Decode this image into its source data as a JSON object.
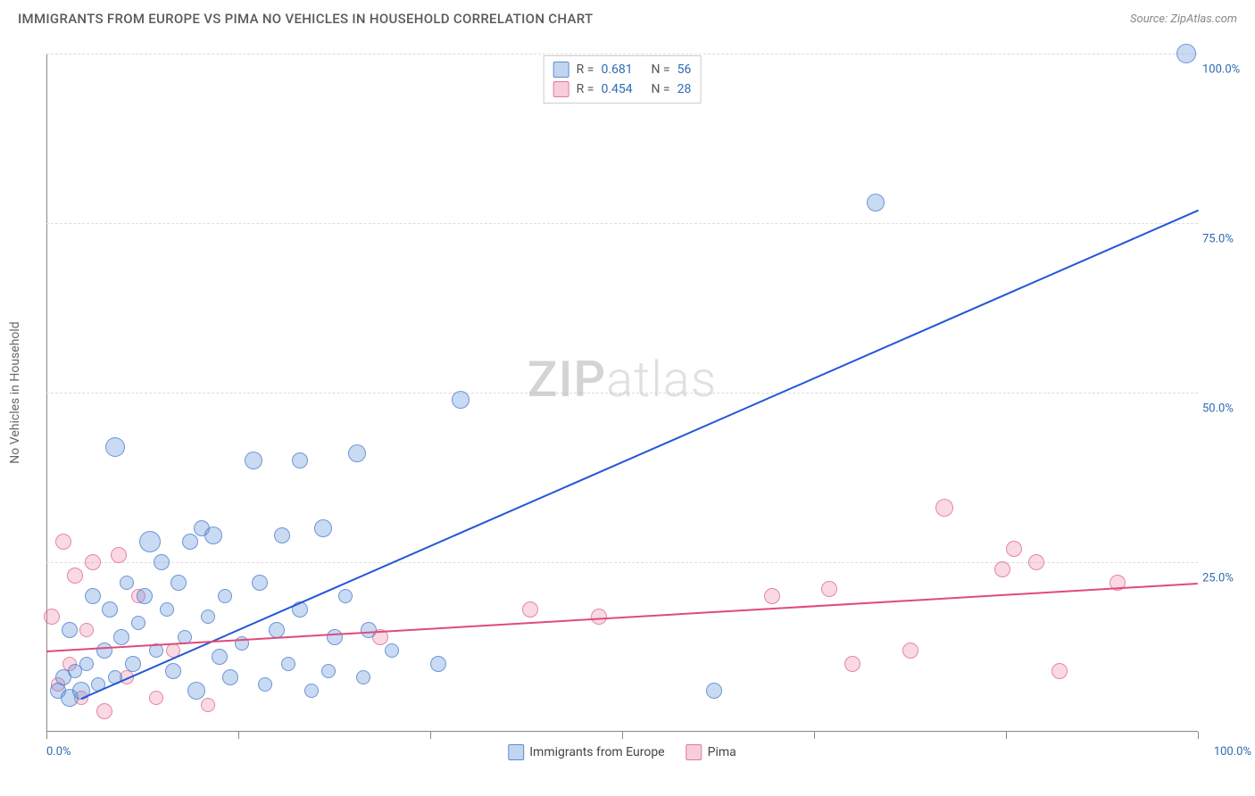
{
  "header": {
    "title": "IMMIGRANTS FROM EUROPE VS PIMA NO VEHICLES IN HOUSEHOLD CORRELATION CHART",
    "source": "Source: ZipAtlas.com"
  },
  "chart": {
    "type": "scatter",
    "watermark_prefix": "ZIP",
    "watermark_suffix": "atlas",
    "y_axis_title": "No Vehicles in Household",
    "x_axis_min_label": "0.0%",
    "x_axis_max_label": "100.0%",
    "xlim": [
      0,
      100
    ],
    "ylim": [
      0,
      100
    ],
    "y_ticks": [
      {
        "value": 25,
        "label": "25.0%"
      },
      {
        "value": 50,
        "label": "50.0%"
      },
      {
        "value": 75,
        "label": "75.0%"
      },
      {
        "value": 100,
        "label": "100.0%"
      }
    ],
    "x_tick_values": [
      0,
      16.67,
      33.33,
      50,
      66.67,
      83.33,
      100
    ],
    "grid_color": "#dddddd",
    "background_color": "#ffffff",
    "series": {
      "blue": {
        "label": "Immigrants from Europe",
        "r_value": "0.681",
        "n_value": "56",
        "fill_color": "rgba(100,150,220,0.35)",
        "stroke_color": "rgba(70,120,200,0.7)",
        "trend": {
          "x1": 3,
          "y1": 5,
          "x2": 100,
          "y2": 77,
          "color": "#2456d6"
        },
        "points": [
          {
            "x": 1,
            "y": 6,
            "r": 9
          },
          {
            "x": 1.5,
            "y": 8,
            "r": 9
          },
          {
            "x": 2,
            "y": 5,
            "r": 10
          },
          {
            "x": 2.5,
            "y": 9,
            "r": 8
          },
          {
            "x": 2,
            "y": 15,
            "r": 9
          },
          {
            "x": 3,
            "y": 6,
            "r": 10
          },
          {
            "x": 3.5,
            "y": 10,
            "r": 8
          },
          {
            "x": 4,
            "y": 20,
            "r": 9
          },
          {
            "x": 4.5,
            "y": 7,
            "r": 8
          },
          {
            "x": 5,
            "y": 12,
            "r": 9
          },
          {
            "x": 5.5,
            "y": 18,
            "r": 9
          },
          {
            "x": 6,
            "y": 8,
            "r": 8
          },
          {
            "x": 6,
            "y": 42,
            "r": 11
          },
          {
            "x": 6.5,
            "y": 14,
            "r": 9
          },
          {
            "x": 7,
            "y": 22,
            "r": 8
          },
          {
            "x": 7.5,
            "y": 10,
            "r": 9
          },
          {
            "x": 8,
            "y": 16,
            "r": 8
          },
          {
            "x": 8.5,
            "y": 20,
            "r": 9
          },
          {
            "x": 9,
            "y": 28,
            "r": 12
          },
          {
            "x": 9.5,
            "y": 12,
            "r": 8
          },
          {
            "x": 10,
            "y": 25,
            "r": 9
          },
          {
            "x": 10.5,
            "y": 18,
            "r": 8
          },
          {
            "x": 11,
            "y": 9,
            "r": 9
          },
          {
            "x": 11.5,
            "y": 22,
            "r": 9
          },
          {
            "x": 12,
            "y": 14,
            "r": 8
          },
          {
            "x": 12.5,
            "y": 28,
            "r": 9
          },
          {
            "x": 13,
            "y": 6,
            "r": 10
          },
          {
            "x": 13.5,
            "y": 30,
            "r": 9
          },
          {
            "x": 14,
            "y": 17,
            "r": 8
          },
          {
            "x": 14.5,
            "y": 29,
            "r": 10
          },
          {
            "x": 15,
            "y": 11,
            "r": 9
          },
          {
            "x": 15.5,
            "y": 20,
            "r": 8
          },
          {
            "x": 16,
            "y": 8,
            "r": 9
          },
          {
            "x": 17,
            "y": 13,
            "r": 8
          },
          {
            "x": 18,
            "y": 40,
            "r": 10
          },
          {
            "x": 18.5,
            "y": 22,
            "r": 9
          },
          {
            "x": 19,
            "y": 7,
            "r": 8
          },
          {
            "x": 20,
            "y": 15,
            "r": 9
          },
          {
            "x": 20.5,
            "y": 29,
            "r": 9
          },
          {
            "x": 21,
            "y": 10,
            "r": 8
          },
          {
            "x": 22,
            "y": 18,
            "r": 9
          },
          {
            "x": 23,
            "y": 6,
            "r": 8
          },
          {
            "x": 22,
            "y": 40,
            "r": 9
          },
          {
            "x": 24,
            "y": 30,
            "r": 10
          },
          {
            "x": 24.5,
            "y": 9,
            "r": 8
          },
          {
            "x": 25,
            "y": 14,
            "r": 9
          },
          {
            "x": 26,
            "y": 20,
            "r": 8
          },
          {
            "x": 27,
            "y": 41,
            "r": 10
          },
          {
            "x": 27.5,
            "y": 8,
            "r": 8
          },
          {
            "x": 28,
            "y": 15,
            "r": 9
          },
          {
            "x": 30,
            "y": 12,
            "r": 8
          },
          {
            "x": 34,
            "y": 10,
            "r": 9
          },
          {
            "x": 36,
            "y": 49,
            "r": 10
          },
          {
            "x": 58,
            "y": 6,
            "r": 9
          },
          {
            "x": 72,
            "y": 78,
            "r": 10
          },
          {
            "x": 99,
            "y": 100,
            "r": 11
          }
        ]
      },
      "pink": {
        "label": "Pima",
        "r_value": "0.454",
        "n_value": "28",
        "fill_color": "rgba(235,130,160,0.3)",
        "stroke_color": "rgba(220,100,140,0.7)",
        "trend": {
          "x1": 0,
          "y1": 12,
          "x2": 100,
          "y2": 22,
          "color": "#e04a7a"
        },
        "points": [
          {
            "x": 0.5,
            "y": 17,
            "r": 9
          },
          {
            "x": 1,
            "y": 7,
            "r": 8
          },
          {
            "x": 1.5,
            "y": 28,
            "r": 9
          },
          {
            "x": 2,
            "y": 10,
            "r": 8
          },
          {
            "x": 2.5,
            "y": 23,
            "r": 9
          },
          {
            "x": 3,
            "y": 5,
            "r": 8
          },
          {
            "x": 3.5,
            "y": 15,
            "r": 8
          },
          {
            "x": 4,
            "y": 25,
            "r": 9
          },
          {
            "x": 5,
            "y": 3,
            "r": 9
          },
          {
            "x": 6.3,
            "y": 26,
            "r": 9
          },
          {
            "x": 7,
            "y": 8,
            "r": 8
          },
          {
            "x": 8,
            "y": 20,
            "r": 8
          },
          {
            "x": 9.5,
            "y": 5,
            "r": 8
          },
          {
            "x": 11,
            "y": 12,
            "r": 8
          },
          {
            "x": 14,
            "y": 4,
            "r": 8
          },
          {
            "x": 29,
            "y": 14,
            "r": 9
          },
          {
            "x": 42,
            "y": 18,
            "r": 9
          },
          {
            "x": 48,
            "y": 17,
            "r": 9
          },
          {
            "x": 63,
            "y": 20,
            "r": 9
          },
          {
            "x": 68,
            "y": 21,
            "r": 9
          },
          {
            "x": 70,
            "y": 10,
            "r": 9
          },
          {
            "x": 75,
            "y": 12,
            "r": 9
          },
          {
            "x": 78,
            "y": 33,
            "r": 10
          },
          {
            "x": 83,
            "y": 24,
            "r": 9
          },
          {
            "x": 84,
            "y": 27,
            "r": 9
          },
          {
            "x": 86,
            "y": 25,
            "r": 9
          },
          {
            "x": 88,
            "y": 9,
            "r": 9
          },
          {
            "x": 93,
            "y": 22,
            "r": 9
          }
        ]
      }
    },
    "legend_top_r_label": "R  =",
    "legend_top_n_label": "N  ="
  }
}
